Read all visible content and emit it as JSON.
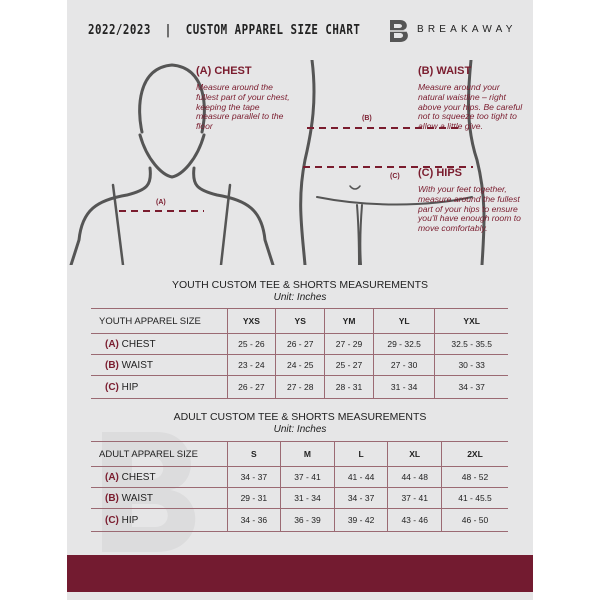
{
  "header": {
    "title": "2022/2023  |  CUSTOM APPAREL SIZE CHART",
    "brand": "BREAKAWAY"
  },
  "chest": {
    "title": "(A) CHEST",
    "desc": "Measure around the fullest part of your chest, keeping the tape measure parallel to the floor",
    "marker": "(A)"
  },
  "waist": {
    "title": "(B) WAIST",
    "desc": "Measure around your natural waistline – right above your hips. Be careful not to squeeze too tight to allow a little give.",
    "marker": "(B)"
  },
  "hips": {
    "title": "(C) HIPS",
    "desc": "With your feet together, measure around the fullest part of your hips to ensure you'll have enough room to move comfortably.",
    "marker": "(C)"
  },
  "youth": {
    "caption": "YOUTH CUSTOM TEE & SHORTS MEASUREMENTS",
    "unit": "Unit: Inches",
    "header": "YOUTH APPAREL SIZE",
    "sizes": [
      "YXS",
      "YS",
      "YM",
      "YL",
      "YXL"
    ],
    "rows": [
      {
        "code": "(A)",
        "label": "CHEST",
        "values": [
          "25 - 26",
          "26 - 27",
          "27 - 29",
          "29 - 32.5",
          "32.5 - 35.5"
        ]
      },
      {
        "code": "(B)",
        "label": "WAIST",
        "values": [
          "23 - 24",
          "24 - 25",
          "25 - 27",
          "27 - 30",
          "30 - 33"
        ]
      },
      {
        "code": "(C)",
        "label": "HIP",
        "values": [
          "26 - 27",
          "27 - 28",
          "28 - 31",
          "31 - 34",
          "34 - 37"
        ]
      }
    ]
  },
  "adult": {
    "caption": "ADULT CUSTOM TEE & SHORTS MEASUREMENTS",
    "unit": "Unit: Inches",
    "header": "ADULT APPAREL SIZE",
    "sizes": [
      "S",
      "M",
      "L",
      "XL",
      "2XL"
    ],
    "rows": [
      {
        "code": "(A)",
        "label": "CHEST",
        "values": [
          "34 - 37",
          "37 - 41",
          "41 - 44",
          "44 - 48",
          "48 - 52"
        ]
      },
      {
        "code": "(B)",
        "label": "WAIST",
        "values": [
          "29 - 31",
          "31 - 34",
          "34 - 37",
          "37 - 41",
          "41 - 45.5"
        ]
      },
      {
        "code": "(C)",
        "label": "HIP",
        "values": [
          "34 - 36",
          "36 - 39",
          "39 - 42",
          "43 - 46",
          "46 - 50"
        ]
      }
    ]
  },
  "colors": {
    "accent": "#731b30",
    "panel": "#e6e6e7"
  }
}
